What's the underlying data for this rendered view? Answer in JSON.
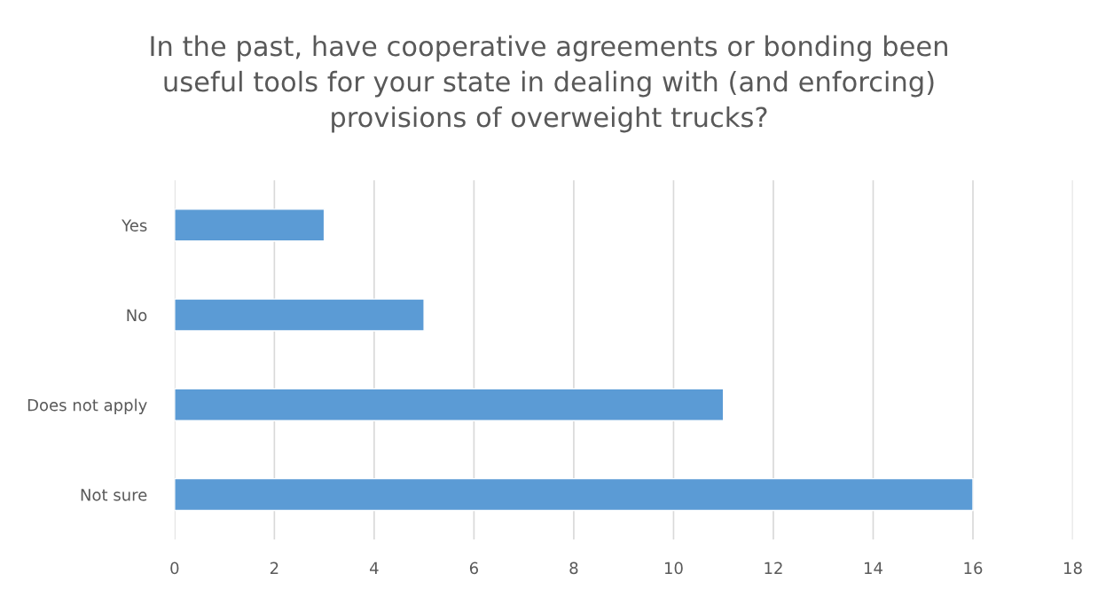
{
  "chart_data": {
    "type": "bar",
    "orientation": "horizontal",
    "title": "In the past, have cooperative agreements or bonding been\nuseful tools for your state in dealing with (and enforcing)\nprovisions of overweight trucks?",
    "categories": [
      "Yes",
      "No",
      "Does not apply",
      "Not sure"
    ],
    "values": [
      3,
      5,
      11,
      16
    ],
    "color": "#5b9bd5",
    "xlim": [
      0,
      18
    ],
    "xticks": [
      0,
      2,
      4,
      6,
      8,
      10,
      12,
      14,
      16,
      18
    ],
    "grid": "x"
  }
}
